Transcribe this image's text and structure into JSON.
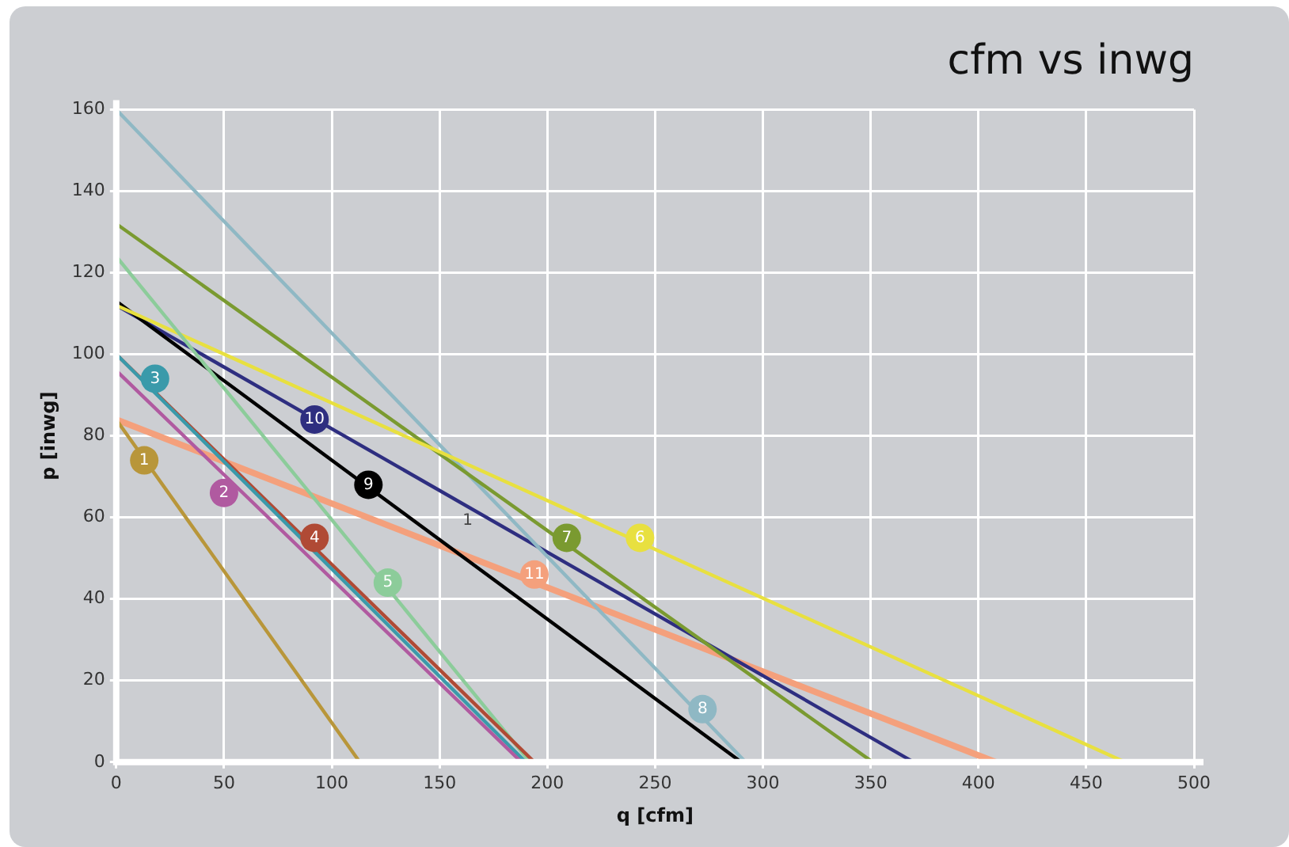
{
  "chart_data": {
    "type": "line",
    "title": "cfm vs inwg",
    "xlabel": "q [cfm]",
    "ylabel": "p [inwg]",
    "xlim": [
      0,
      500
    ],
    "xticks": [
      0,
      50,
      100,
      150,
      200,
      250,
      300,
      350,
      400,
      450,
      500
    ],
    "ylim": [
      0,
      160
    ],
    "yticks": [
      0,
      20,
      40,
      60,
      80,
      100,
      120,
      140,
      160
    ],
    "grid": true,
    "legend": false,
    "marker": "none",
    "line_style": "solid",
    "series": [
      {
        "color": "#b8963a",
        "x": [
          0,
          113
        ],
        "values": [
          84,
          0
        ]
      },
      {
        "color": "#b05aa0",
        "x": [
          0,
          188
        ],
        "values": [
          96,
          0
        ]
      },
      {
        "color": "#3a9aaa",
        "x": [
          0,
          190
        ],
        "values": [
          100,
          0
        ]
      },
      {
        "color": "#b04a35",
        "x": [
          0,
          194
        ],
        "values": [
          100,
          0
        ]
      },
      {
        "color": "#8ccc9a",
        "x": [
          0,
          192
        ],
        "values": [
          124,
          0
        ]
      },
      {
        "color": "#e8e040",
        "x": [
          0,
          468
        ],
        "values": [
          112,
          0
        ]
      },
      {
        "color": "#7a9a30",
        "x": [
          0,
          351
        ],
        "values": [
          132,
          0
        ]
      },
      {
        "color": "#8fb8c4",
        "x": [
          0,
          292
        ],
        "values": [
          160,
          0
        ]
      },
      {
        "color": "#000000",
        "x": [
          0,
          290
        ],
        "values": [
          113,
          0
        ]
      },
      {
        "color": "#2e2e80",
        "x": [
          0,
          370
        ],
        "values": [
          112,
          0
        ]
      },
      {
        "color": "#f4a07c",
        "x": [
          0,
          408
        ],
        "values": [
          84,
          0
        ]
      }
    ],
    "annotations": [
      {
        "text": "1",
        "x": 13,
        "y": 74
      },
      {
        "text": "2",
        "x": 50,
        "y": 66
      },
      {
        "text": "3",
        "x": 18,
        "y": 94
      },
      {
        "text": "4",
        "x": 92,
        "y": 55
      },
      {
        "text": "5",
        "x": 126,
        "y": 44
      },
      {
        "text": "6",
        "x": 243,
        "y": 55
      },
      {
        "text": "7",
        "x": 209,
        "y": 55
      },
      {
        "text": "8",
        "x": 272,
        "y": 13
      },
      {
        "text": "9",
        "x": 117,
        "y": 68
      },
      {
        "text": "10",
        "x": 92,
        "y": 84
      },
      {
        "text": "11",
        "x": 194,
        "y": 46
      },
      "1"
    ]
  }
}
